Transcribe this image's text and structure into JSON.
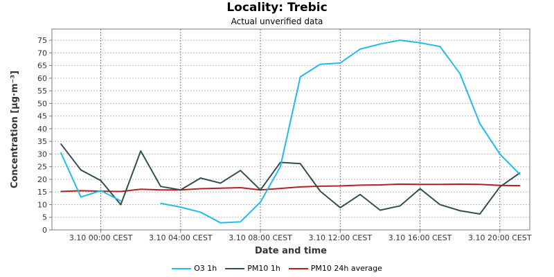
{
  "chart_data": {
    "type": "line",
    "title": "Locality: Trebic",
    "subtitle": "Actual unverified data",
    "xlabel": "Date and time",
    "ylabel": "Concentration [µg·m⁻³]",
    "ylim": [
      0,
      79.4
    ],
    "xlim_hours": [
      -2.45,
      21.5
    ],
    "grid": true,
    "legend_position": "bottom",
    "x_hours": [
      -2,
      -1,
      0,
      1,
      2,
      3,
      4,
      5,
      6,
      7,
      8,
      9,
      10,
      11,
      12,
      13,
      14,
      15,
      16,
      17,
      18,
      19,
      20,
      21
    ],
    "x_ticks": [
      {
        "hour": 0,
        "label": "3.10 00:00 CEST"
      },
      {
        "hour": 4,
        "label": "3.10 04:00 CEST"
      },
      {
        "hour": 8,
        "label": "3.10 08:00 CEST"
      },
      {
        "hour": 12,
        "label": "3.10 12:00 CEST"
      },
      {
        "hour": 16,
        "label": "3.10 16:00 CEST"
      },
      {
        "hour": 20,
        "label": "3.10 20:00 CEST"
      }
    ],
    "y_ticks": [
      0,
      5,
      10,
      15,
      20,
      25,
      30,
      35,
      40,
      45,
      50,
      55,
      60,
      65,
      70,
      75
    ],
    "series": [
      {
        "name": "O3 1h",
        "color": "#1ebaf0",
        "values": [
          30.5,
          13,
          15.5,
          11.5,
          null,
          10.5,
          9,
          7,
          2.8,
          3.2,
          11,
          25,
          60.5,
          65.5,
          66,
          71.5,
          73.5,
          75,
          74,
          72.5,
          61.8,
          42,
          30,
          22
        ]
      },
      {
        "name": "PM10 1h",
        "color": "#2f4f4f",
        "values": [
          34,
          23.7,
          19.5,
          10,
          31.2,
          17.2,
          15.8,
          20.5,
          18.5,
          23.5,
          15.8,
          26.7,
          26.2,
          15.3,
          8.8,
          14,
          7.8,
          9.5,
          16.3,
          10,
          7.6,
          6.3,
          17,
          22.5
        ]
      },
      {
        "name": "PM10 24h average",
        "color": "#b22222",
        "values": [
          15.2,
          15.5,
          15.3,
          15.2,
          16.1,
          15.8,
          15.8,
          16.3,
          16.5,
          16.7,
          15.8,
          16.4,
          17,
          17.3,
          17.4,
          17.7,
          17.8,
          18.1,
          18,
          18,
          18.1,
          18,
          17.6,
          17.5
        ]
      }
    ]
  }
}
